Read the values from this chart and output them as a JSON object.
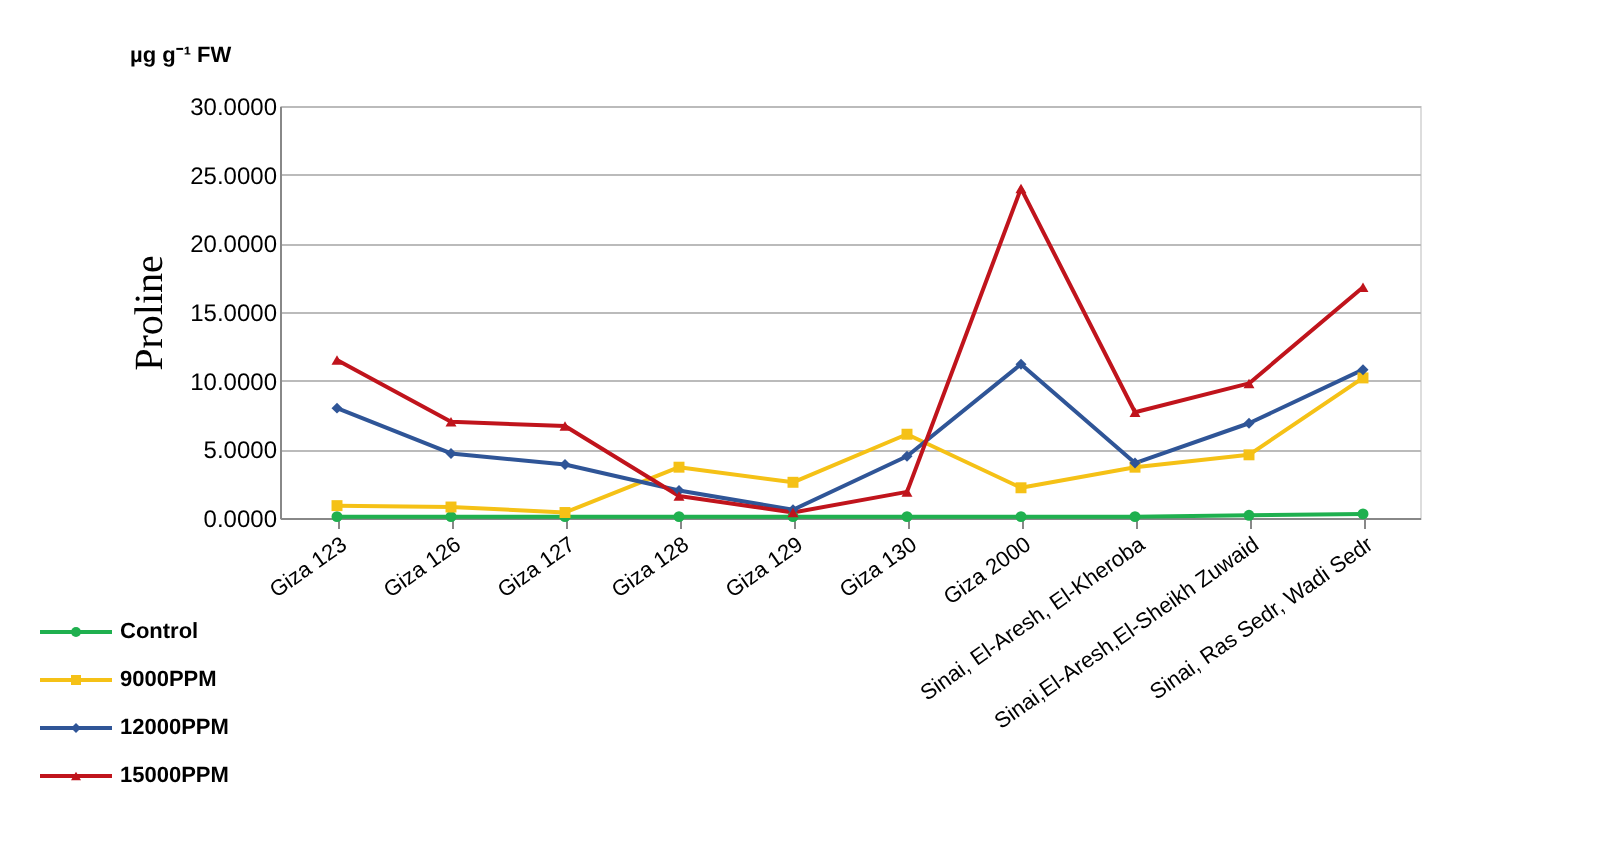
{
  "chart_data": {
    "type": "line",
    "ylabel": "Proline",
    "annotations": [
      "µg g⁻¹ FW"
    ],
    "categories": [
      "Giza 123",
      "Giza 126",
      "Giza 127",
      "Giza 128",
      "Giza 129",
      "Giza 130",
      "Giza 2000",
      "Sinai, El-Aresh, El-Kheroba",
      "Sinai,El-Aresh,El-Sheikh Zuwaid",
      "Sinai, Ras Sedr, Wadi Sedr"
    ],
    "series": [
      {
        "name": "Control",
        "color": "#1fb04f",
        "marker": "circle",
        "values": [
          0.1,
          0.1,
          0.1,
          0.1,
          0.1,
          0.1,
          0.1,
          0.1,
          0.2,
          0.3
        ]
      },
      {
        "name": "9000PPM",
        "color": "#f5c116",
        "marker": "square",
        "values": [
          0.9,
          0.8,
          0.4,
          3.7,
          2.6,
          6.1,
          2.2,
          3.7,
          4.6,
          10.2
        ]
      },
      {
        "name": "12000PPM",
        "color": "#2f5597",
        "marker": "diamond",
        "values": [
          8.0,
          4.7,
          3.9,
          2.0,
          0.6,
          4.5,
          11.2,
          4.0,
          6.9,
          10.8
        ]
      },
      {
        "name": "15000PPM",
        "color": "#c0141c",
        "marker": "triangle",
        "values": [
          11.5,
          7.0,
          6.7,
          1.6,
          0.4,
          1.9,
          24.0,
          7.7,
          9.8,
          16.8
        ]
      }
    ],
    "ylim": [
      0,
      30
    ],
    "yticks": [
      {
        "value": 0,
        "label": "0.0000"
      },
      {
        "value": 5,
        "label": "5.0000"
      },
      {
        "value": 10,
        "label": "10.0000"
      },
      {
        "value": 15,
        "label": "15.0000"
      },
      {
        "value": 20,
        "label": "20.0000"
      },
      {
        "value": 25,
        "label": "25.0000"
      },
      {
        "value": 30,
        "label": "30.0000"
      }
    ],
    "grid": "y",
    "legend": "bottom left",
    "line_style": "solid"
  }
}
